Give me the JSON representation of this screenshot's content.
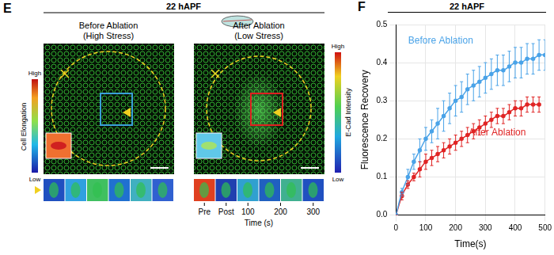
{
  "panel_e": {
    "label": "E",
    "header": "22 hAPF",
    "left": {
      "title": "Before Ablation",
      "subtitle": "(High Stress)"
    },
    "right": {
      "title": "After Ablation",
      "subtitle": "(Low Stress)"
    },
    "left_colorbar": {
      "title": "Cell Elongation",
      "high": "High",
      "low": "Low"
    },
    "right_colorbar": {
      "title": "E-Cad Intensity",
      "high": "High",
      "low": "Low"
    },
    "time_labels": [
      "Pre",
      "Post",
      "100",
      "200",
      "300"
    ],
    "time_axis": "Time (s)"
  },
  "chart_data": {
    "panel_label": "F",
    "header": "22 hAPF",
    "type": "scatter",
    "x_label": "Time(s)",
    "y_label": "Fluorescence Recovery",
    "xlim": [
      0,
      500
    ],
    "xticks": [
      0,
      100,
      200,
      300,
      400,
      500
    ],
    "ylim": [
      0,
      0.5
    ],
    "yticks": [
      {
        "value": 0,
        "label": "0.0"
      },
      0.1,
      0.2,
      0.3,
      0.4,
      0.5
    ],
    "grid": true,
    "series": [
      {
        "name": "Before Ablation",
        "color": "#4aa3e8",
        "marker": "circle",
        "line_style": "solid",
        "x": [
          0,
          20,
          40,
          60,
          80,
          100,
          120,
          140,
          160,
          180,
          200,
          220,
          240,
          260,
          280,
          300,
          320,
          340,
          360,
          380,
          400,
          420,
          440,
          460,
          480,
          500
        ],
        "values": [
          0,
          0.06,
          0.1,
          0.14,
          0.17,
          0.2,
          0.22,
          0.24,
          0.26,
          0.28,
          0.3,
          0.31,
          0.33,
          0.34,
          0.35,
          0.36,
          0.37,
          0.38,
          0.38,
          0.39,
          0.4,
          0.4,
          0.41,
          0.41,
          0.42,
          0.42
        ],
        "errors": [
          0,
          0.01,
          0.02,
          0.02,
          0.03,
          0.03,
          0.03,
          0.04,
          0.04,
          0.04,
          0.04,
          0.04,
          0.04,
          0.04,
          0.04,
          0.04,
          0.04,
          0.04,
          0.04,
          0.04,
          0.04,
          0.04,
          0.04,
          0.04,
          0.04,
          0.04
        ]
      },
      {
        "name": "After Ablation",
        "color": "#e02424",
        "marker": "circle",
        "line_style": "solid",
        "x": [
          0,
          20,
          40,
          60,
          80,
          100,
          120,
          140,
          160,
          180,
          200,
          220,
          240,
          260,
          280,
          300,
          320,
          340,
          360,
          380,
          400,
          420,
          440,
          460,
          480
        ],
        "values": [
          0,
          0.05,
          0.08,
          0.1,
          0.12,
          0.14,
          0.15,
          0.16,
          0.17,
          0.18,
          0.19,
          0.2,
          0.21,
          0.22,
          0.23,
          0.24,
          0.25,
          0.26,
          0.26,
          0.27,
          0.28,
          0.28,
          0.29,
          0.29,
          0.29
        ],
        "errors": [
          0,
          0.01,
          0.01,
          0.01,
          0.02,
          0.02,
          0.02,
          0.02,
          0.02,
          0.02,
          0.02,
          0.02,
          0.02,
          0.02,
          0.02,
          0.02,
          0.02,
          0.02,
          0.02,
          0.02,
          0.02,
          0.02,
          0.02,
          0.02,
          0.02
        ]
      }
    ]
  }
}
